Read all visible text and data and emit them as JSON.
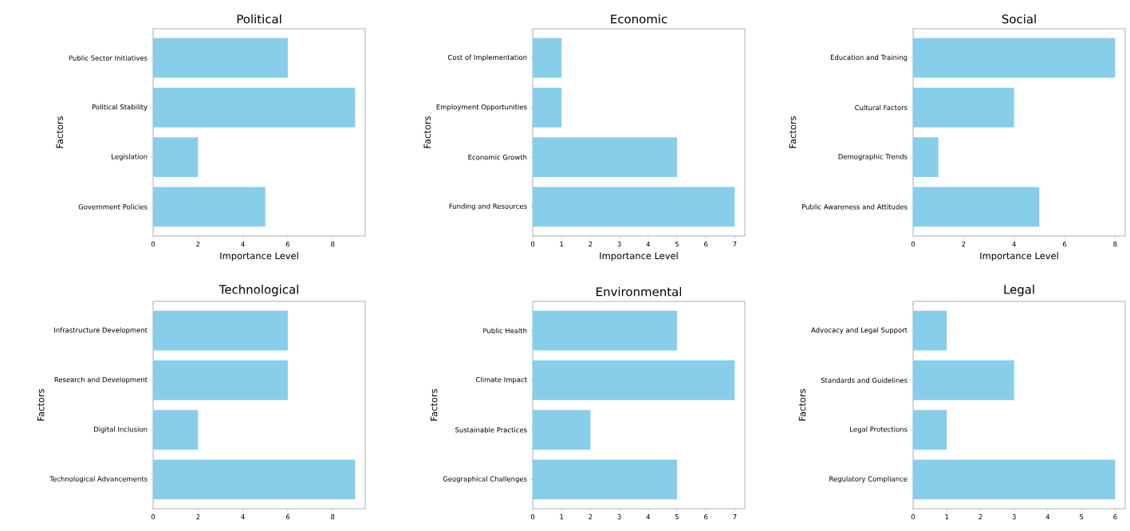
{
  "chart_data": [
    {
      "type": "bar",
      "orientation": "horizontal",
      "title": "Political",
      "xlabel": "Importance Level",
      "ylabel": "Factors",
      "categories": [
        "Public Sector Initiatives",
        "Political Stability",
        "Legislation",
        "Government Policies"
      ],
      "values": [
        6,
        9,
        2,
        5
      ],
      "color": "#87ceeb",
      "xlim": [
        0,
        9.45
      ],
      "xticks": [
        0,
        2,
        4,
        6,
        8
      ]
    },
    {
      "type": "bar",
      "orientation": "horizontal",
      "title": "Economic",
      "xlabel": "Importance Level",
      "ylabel": "Factors",
      "categories": [
        "Cost of Implementation",
        "Employment Opportunities",
        "Economic Growth",
        "Funding and Resources"
      ],
      "values": [
        1,
        1,
        5,
        7
      ],
      "color": "#87ceeb",
      "xlim": [
        0,
        7.35
      ],
      "xticks": [
        0,
        1,
        2,
        3,
        4,
        5,
        6,
        7
      ]
    },
    {
      "type": "bar",
      "orientation": "horizontal",
      "title": "Social",
      "xlabel": "Importance Level",
      "ylabel": "Factors",
      "categories": [
        "Education and Training",
        "Cultural Factors",
        "Demographic Trends",
        "Public Awareness and Attitudes"
      ],
      "values": [
        8,
        4,
        1,
        5
      ],
      "color": "#87ceeb",
      "xlim": [
        0,
        8.4
      ],
      "xticks": [
        0,
        2,
        4,
        6,
        8
      ]
    },
    {
      "type": "bar",
      "orientation": "horizontal",
      "title": "Technological",
      "ylabel": "Factors",
      "categories": [
        "Infrastructure Development",
        "Research and Development",
        "Digital Inclusion",
        "Technological Advancements"
      ],
      "values": [
        6,
        6,
        2,
        9
      ],
      "color": "#87ceeb",
      "xlim": [
        0,
        9.45
      ],
      "xticks": [
        0,
        2,
        4,
        6,
        8
      ]
    },
    {
      "type": "bar",
      "orientation": "horizontal",
      "title": "Environmental",
      "ylabel": "Factors",
      "categories": [
        "Public Health",
        "Climate Impact",
        "Sustainable Practices",
        "Geographical Challenges"
      ],
      "values": [
        5,
        7,
        2,
        5
      ],
      "color": "#87ceeb",
      "xlim": [
        0,
        7.35
      ],
      "xticks": [
        0,
        1,
        2,
        3,
        4,
        5,
        6,
        7
      ]
    },
    {
      "type": "bar",
      "orientation": "horizontal",
      "title": "Legal",
      "ylabel": "Factors",
      "categories": [
        "Advocacy and Legal Support",
        "Standards and Guidelines",
        "Legal Protections",
        "Regulatory Compliance"
      ],
      "values": [
        1,
        3,
        1,
        6
      ],
      "color": "#87ceeb",
      "xlim": [
        0,
        6.3
      ],
      "xticks": [
        0,
        1,
        2,
        3,
        4,
        5,
        6
      ]
    }
  ]
}
